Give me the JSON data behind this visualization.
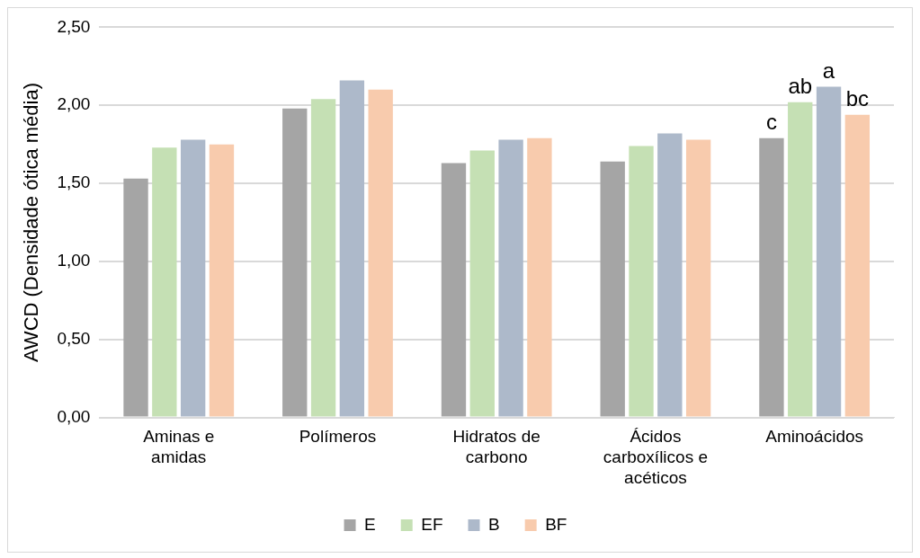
{
  "chart_data": {
    "type": "bar",
    "ylabel": "AWCD (Densidade ótica média)",
    "categories": [
      "Aminas e amidas",
      "Polímeros",
      "Hidratos de carbono",
      "Ácidos carboxílicos e acéticos",
      "Aminoácidos"
    ],
    "series": [
      {
        "name": "E",
        "color": "#a5a5a5",
        "values": [
          1.53,
          1.98,
          1.63,
          1.64,
          1.79
        ]
      },
      {
        "name": "EF",
        "color": "#c5e0b4",
        "values": [
          1.73,
          2.04,
          1.71,
          1.74,
          2.02
        ]
      },
      {
        "name": "B",
        "color": "#adb9ca",
        "values": [
          1.78,
          2.16,
          1.78,
          1.82,
          2.12
        ]
      },
      {
        "name": "BF",
        "color": "#f8cbad",
        "values": [
          1.75,
          2.1,
          1.79,
          1.78,
          1.94
        ]
      }
    ],
    "ylim": [
      0,
      2.5
    ],
    "yticks": [
      {
        "value": 0,
        "label": "0,00"
      },
      {
        "value": 0.5,
        "label": "0,50"
      },
      {
        "value": 1,
        "label": "1,00"
      },
      {
        "value": 1.5,
        "label": "1,50"
      },
      {
        "value": 2,
        "label": "2,00"
      },
      {
        "value": 2.5,
        "label": "2,50"
      }
    ],
    "grid": "y",
    "legend": "bottom",
    "annotations": [
      {
        "text": "c",
        "x": "Aminoácidos",
        "y": 1.79
      },
      {
        "text": "ab",
        "x": "Aminoácidos",
        "y": 2.02
      },
      {
        "text": "a",
        "x": "Aminoácidos",
        "y": 2.12
      },
      {
        "text": "bc",
        "x": "Aminoácidos",
        "y": 1.94
      }
    ]
  }
}
